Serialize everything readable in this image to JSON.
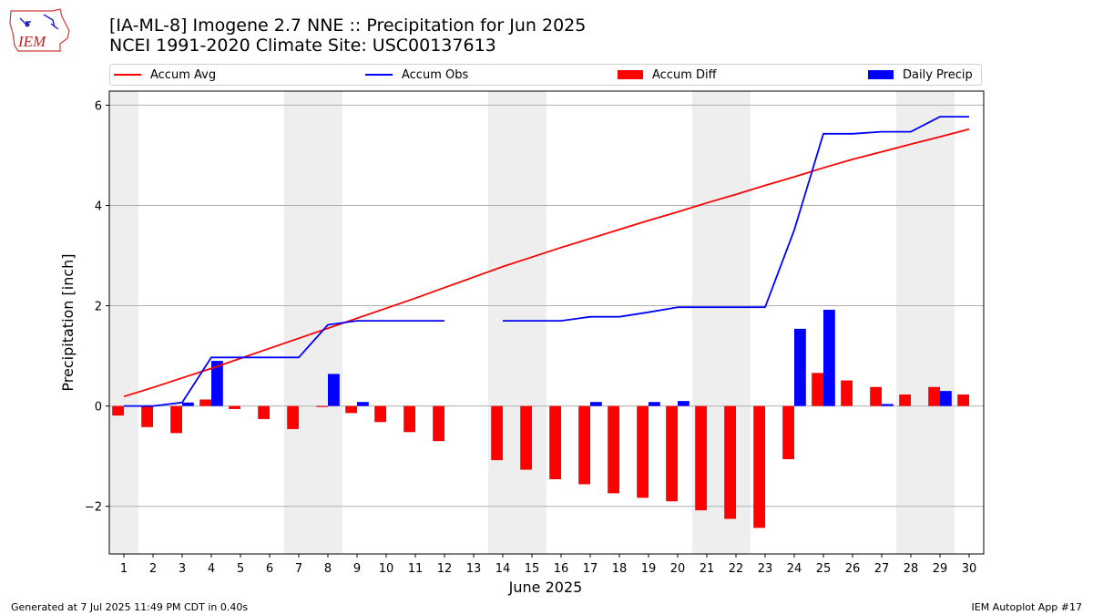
{
  "logo": {
    "text": "IEM"
  },
  "title": {
    "line1": "[IA-ML-8] Imogene 2.7 NNE :: Precipitation for Jun 2025",
    "line2": "NCEI 1991-2020 Climate Site: USC00137613"
  },
  "colors": {
    "accum_avg": "#ff0000",
    "accum_obs": "#0000ff",
    "accum_diff": "#ff0000",
    "daily_precip": "#0000ff",
    "weekend_shade": "#eeeeee",
    "grid": "#b0b0b0"
  },
  "chart_data": {
    "type": "bar",
    "xlabel": "June 2025",
    "ylabel": "Precipitation [inch]",
    "xlim": [
      0.5,
      30.5
    ],
    "ylim": [
      -2.95,
      6.28
    ],
    "yticks": [
      -2,
      0,
      2,
      4,
      6
    ],
    "ytick_labels": [
      "−2",
      "0",
      "2",
      "4",
      "6"
    ],
    "grid": "horizontal",
    "legend_position": "top",
    "legend": [
      "Accum Avg",
      "Accum Obs",
      "Accum Diff",
      "Daily Precip"
    ],
    "shaded_days": [
      [
        0.5,
        1.5
      ],
      [
        6.5,
        8.5
      ],
      [
        13.5,
        15.5
      ],
      [
        20.5,
        22.5
      ],
      [
        27.5,
        29.5
      ]
    ],
    "days": [
      1,
      2,
      3,
      4,
      5,
      6,
      7,
      8,
      9,
      10,
      11,
      12,
      13,
      14,
      15,
      16,
      17,
      18,
      19,
      20,
      21,
      22,
      23,
      24,
      25,
      26,
      27,
      28,
      29,
      30
    ],
    "series": [
      {
        "name": "Accum Avg",
        "type": "line",
        "values": [
          0.19,
          0.37,
          0.56,
          0.75,
          0.95,
          1.15,
          1.35,
          1.55,
          1.75,
          1.95,
          2.15,
          2.36,
          2.57,
          2.78,
          2.97,
          3.16,
          3.34,
          3.52,
          3.7,
          3.87,
          4.05,
          4.22,
          4.4,
          4.57,
          4.75,
          4.92,
          5.07,
          5.22,
          5.37,
          5.52
        ]
      },
      {
        "name": "Accum Obs",
        "type": "line",
        "values": [
          0.0,
          0.0,
          0.07,
          0.97,
          0.97,
          0.97,
          0.97,
          1.62,
          1.7,
          1.7,
          1.7,
          1.7,
          null,
          1.7,
          1.7,
          1.7,
          1.78,
          1.78,
          1.87,
          1.97,
          1.97,
          1.97,
          1.97,
          3.51,
          5.43,
          5.43,
          5.47,
          5.47,
          5.77,
          5.77
        ]
      },
      {
        "name": "Accum Diff",
        "type": "bar",
        "values": [
          -0.19,
          -0.42,
          -0.54,
          0.13,
          -0.06,
          -0.26,
          -0.46,
          -0.02,
          -0.14,
          -0.32,
          -0.52,
          -0.7,
          null,
          -1.08,
          -1.27,
          -1.46,
          -1.56,
          -1.74,
          -1.83,
          -1.9,
          -2.08,
          -2.25,
          -2.43,
          -1.06,
          0.66,
          0.51,
          0.38,
          0.23,
          0.38,
          0.23
        ]
      },
      {
        "name": "Daily Precip",
        "type": "bar",
        "values": [
          0,
          0,
          0.07,
          0.9,
          0,
          0,
          0,
          0.64,
          0.08,
          0,
          0,
          0,
          null,
          0,
          0,
          0,
          0.08,
          0,
          0.08,
          0.1,
          0,
          0,
          0,
          1.54,
          1.92,
          0,
          0.04,
          0,
          0.3,
          0
        ]
      }
    ]
  },
  "footer": {
    "left": "Generated at 7 Jul 2025 11:49 PM CDT in 0.40s",
    "right": "IEM Autoplot App #17"
  }
}
